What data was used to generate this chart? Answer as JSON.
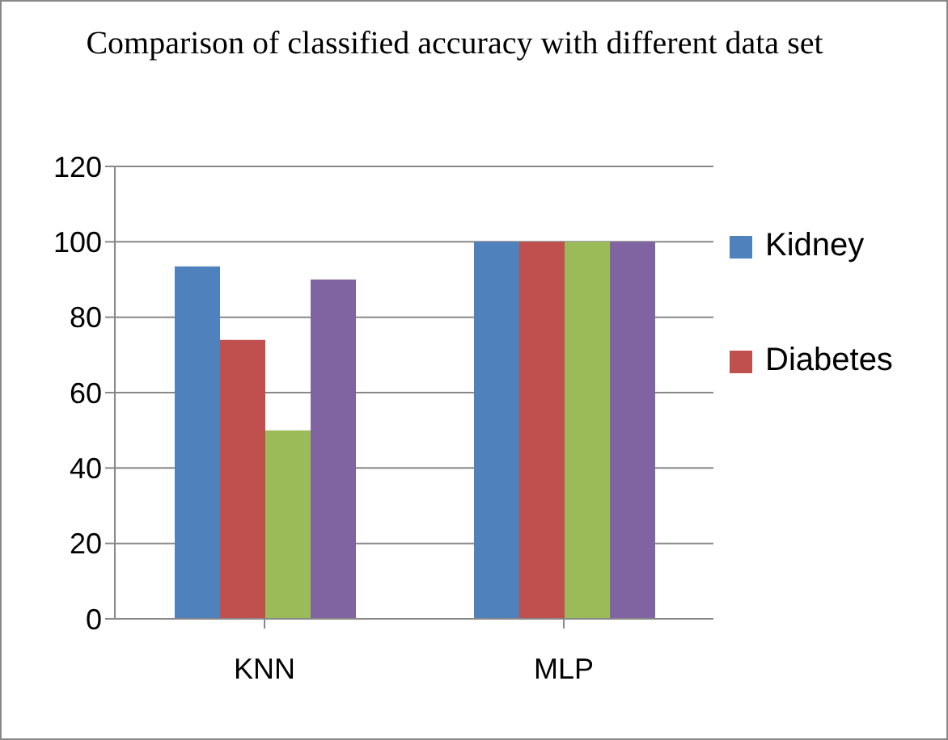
{
  "chart_data": {
    "type": "bar",
    "title": "Comparison of classified accuracy with different data set",
    "categories": [
      "KNN",
      "MLP"
    ],
    "series": [
      {
        "name": "Kidney",
        "color": "#4f81bd",
        "values": [
          93.5,
          100
        ]
      },
      {
        "name": "Diabetes",
        "color": "#c0504d",
        "values": [
          74,
          100
        ]
      },
      {
        "color": "#9bbb59",
        "values": [
          50,
          100
        ]
      },
      {
        "color": "#8064a2",
        "values": [
          90,
          100
        ]
      }
    ],
    "ylim": [
      0,
      120
    ],
    "yticks": [
      0,
      20,
      40,
      60,
      80,
      100,
      120
    ],
    "grid": "y",
    "legend": "right"
  }
}
